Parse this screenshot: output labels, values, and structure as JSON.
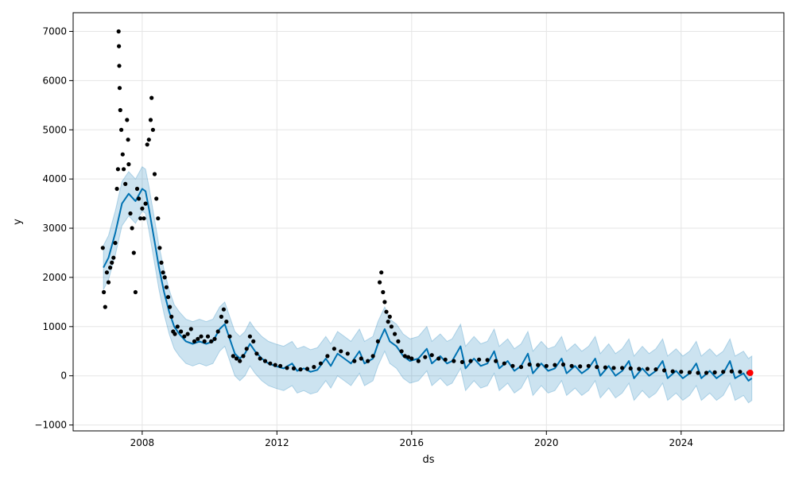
{
  "chart_data": {
    "type": "scatter",
    "title": "",
    "xlabel": "ds",
    "ylabel": "y",
    "x_tick_labels": [
      "2008",
      "2012",
      "2016",
      "2020",
      "2024"
    ],
    "y_tick_labels": [
      "7000",
      "6000",
      "5000",
      "4000",
      "3000",
      "2000",
      "1000",
      "0",
      "−1000"
    ],
    "xlim": [
      2005.95,
      2027.05
    ],
    "ylim": [
      -1120,
      7380
    ],
    "grid": true,
    "colors": {
      "observed": "#000000",
      "forecast_line": "#0072B2",
      "uncertainty_band": "#0072B2",
      "latest_point": "#FF0000",
      "grid": "#e5e5e5",
      "axes": "#000000"
    },
    "observed_points": [
      [
        2006.83,
        2600
      ],
      [
        2006.86,
        1700
      ],
      [
        2006.9,
        1400
      ],
      [
        2006.95,
        2100
      ],
      [
        2007.0,
        1900
      ],
      [
        2007.05,
        2200
      ],
      [
        2007.1,
        2300
      ],
      [
        2007.15,
        2400
      ],
      [
        2007.2,
        2700
      ],
      [
        2007.25,
        3800
      ],
      [
        2007.28,
        4200
      ],
      [
        2007.3,
        7000
      ],
      [
        2007.31,
        6700
      ],
      [
        2007.32,
        6300
      ],
      [
        2007.33,
        5850
      ],
      [
        2007.35,
        5400
      ],
      [
        2007.38,
        5000
      ],
      [
        2007.42,
        4500
      ],
      [
        2007.45,
        4200
      ],
      [
        2007.5,
        3900
      ],
      [
        2007.55,
        5200
      ],
      [
        2007.58,
        4800
      ],
      [
        2007.6,
        4300
      ],
      [
        2007.65,
        3300
      ],
      [
        2007.7,
        3000
      ],
      [
        2007.75,
        2500
      ],
      [
        2007.8,
        1700
      ],
      [
        2007.85,
        3800
      ],
      [
        2007.9,
        3600
      ],
      [
        2007.95,
        3200
      ],
      [
        2008.0,
        3400
      ],
      [
        2008.05,
        3200
      ],
      [
        2008.1,
        3500
      ],
      [
        2008.15,
        4700
      ],
      [
        2008.2,
        4800
      ],
      [
        2008.25,
        5200
      ],
      [
        2008.28,
        5650
      ],
      [
        2008.32,
        5000
      ],
      [
        2008.37,
        4100
      ],
      [
        2008.42,
        3600
      ],
      [
        2008.47,
        3200
      ],
      [
        2008.52,
        2600
      ],
      [
        2008.57,
        2300
      ],
      [
        2008.62,
        2100
      ],
      [
        2008.67,
        2000
      ],
      [
        2008.72,
        1800
      ],
      [
        2008.77,
        1600
      ],
      [
        2008.82,
        1400
      ],
      [
        2008.87,
        1200
      ],
      [
        2008.92,
        900
      ],
      [
        2008.97,
        850
      ],
      [
        2009.05,
        1000
      ],
      [
        2009.15,
        900
      ],
      [
        2009.25,
        800
      ],
      [
        2009.35,
        850
      ],
      [
        2009.45,
        950
      ],
      [
        2009.55,
        700
      ],
      [
        2009.65,
        750
      ],
      [
        2009.75,
        800
      ],
      [
        2009.85,
        700
      ],
      [
        2009.95,
        800
      ],
      [
        2010.05,
        700
      ],
      [
        2010.15,
        750
      ],
      [
        2010.25,
        900
      ],
      [
        2010.35,
        1200
      ],
      [
        2010.42,
        1350
      ],
      [
        2010.5,
        1100
      ],
      [
        2010.6,
        800
      ],
      [
        2010.7,
        400
      ],
      [
        2010.8,
        350
      ],
      [
        2010.9,
        300
      ],
      [
        2011.0,
        400
      ],
      [
        2011.1,
        550
      ],
      [
        2011.2,
        800
      ],
      [
        2011.3,
        700
      ],
      [
        2011.4,
        450
      ],
      [
        2011.5,
        350
      ],
      [
        2011.65,
        300
      ],
      [
        2011.8,
        250
      ],
      [
        2011.95,
        220
      ],
      [
        2012.1,
        200
      ],
      [
        2012.3,
        160
      ],
      [
        2012.5,
        150
      ],
      [
        2012.7,
        130
      ],
      [
        2012.9,
        140
      ],
      [
        2013.1,
        180
      ],
      [
        2013.3,
        250
      ],
      [
        2013.5,
        400
      ],
      [
        2013.7,
        550
      ],
      [
        2013.9,
        500
      ],
      [
        2014.1,
        450
      ],
      [
        2014.3,
        300
      ],
      [
        2014.5,
        350
      ],
      [
        2014.7,
        300
      ],
      [
        2014.85,
        400
      ],
      [
        2015.0,
        700
      ],
      [
        2015.05,
        1900
      ],
      [
        2015.1,
        2100
      ],
      [
        2015.15,
        1700
      ],
      [
        2015.2,
        1500
      ],
      [
        2015.25,
        1300
      ],
      [
        2015.3,
        1100
      ],
      [
        2015.35,
        1200
      ],
      [
        2015.4,
        1000
      ],
      [
        2015.5,
        850
      ],
      [
        2015.6,
        700
      ],
      [
        2015.7,
        500
      ],
      [
        2015.8,
        400
      ],
      [
        2015.9,
        380
      ],
      [
        2016.0,
        350
      ],
      [
        2016.2,
        300
      ],
      [
        2016.4,
        380
      ],
      [
        2016.6,
        420
      ],
      [
        2016.8,
        350
      ],
      [
        2017.0,
        330
      ],
      [
        2017.25,
        300
      ],
      [
        2017.5,
        280
      ],
      [
        2017.75,
        300
      ],
      [
        2018.0,
        330
      ],
      [
        2018.25,
        320
      ],
      [
        2018.5,
        300
      ],
      [
        2018.75,
        250
      ],
      [
        2019.0,
        200
      ],
      [
        2019.25,
        180
      ],
      [
        2019.5,
        230
      ],
      [
        2019.75,
        220
      ],
      [
        2020.0,
        200
      ],
      [
        2020.25,
        220
      ],
      [
        2020.5,
        230
      ],
      [
        2020.75,
        200
      ],
      [
        2021.0,
        190
      ],
      [
        2021.25,
        200
      ],
      [
        2021.5,
        180
      ],
      [
        2021.75,
        170
      ],
      [
        2022.0,
        160
      ],
      [
        2022.25,
        160
      ],
      [
        2022.5,
        150
      ],
      [
        2022.75,
        140
      ],
      [
        2023.0,
        140
      ],
      [
        2023.25,
        130
      ],
      [
        2023.5,
        110
      ],
      [
        2023.75,
        90
      ],
      [
        2024.0,
        80
      ],
      [
        2024.25,
        70
      ],
      [
        2024.5,
        60
      ],
      [
        2024.75,
        60
      ],
      [
        2025.0,
        70
      ],
      [
        2025.25,
        80
      ],
      [
        2025.5,
        90
      ],
      [
        2025.75,
        80
      ],
      [
        2026.0,
        60
      ]
    ],
    "latest_point": [
      2026.05,
      60
    ],
    "forecast": [
      [
        2006.85,
        2200
      ],
      [
        2007.0,
        2400
      ],
      [
        2007.2,
        2900
      ],
      [
        2007.4,
        3500
      ],
      [
        2007.6,
        3700
      ],
      [
        2007.8,
        3550
      ],
      [
        2008.0,
        3800
      ],
      [
        2008.1,
        3750
      ],
      [
        2008.2,
        3400
      ],
      [
        2008.35,
        2800
      ],
      [
        2008.5,
        2200
      ],
      [
        2008.65,
        1700
      ],
      [
        2008.8,
        1300
      ],
      [
        2008.95,
        1000
      ],
      [
        2009.1,
        850
      ],
      [
        2009.3,
        700
      ],
      [
        2009.5,
        650
      ],
      [
        2009.7,
        700
      ],
      [
        2009.9,
        650
      ],
      [
        2010.1,
        700
      ],
      [
        2010.3,
        950
      ],
      [
        2010.45,
        1050
      ],
      [
        2010.6,
        750
      ],
      [
        2010.75,
        450
      ],
      [
        2010.9,
        350
      ],
      [
        2011.05,
        450
      ],
      [
        2011.2,
        650
      ],
      [
        2011.35,
        500
      ],
      [
        2011.55,
        350
      ],
      [
        2011.75,
        250
      ],
      [
        2011.95,
        200
      ],
      [
        2012.2,
        150
      ],
      [
        2012.45,
        250
      ],
      [
        2012.6,
        100
      ],
      [
        2012.8,
        150
      ],
      [
        2013.0,
        80
      ],
      [
        2013.2,
        120
      ],
      [
        2013.45,
        350
      ],
      [
        2013.6,
        200
      ],
      [
        2013.8,
        450
      ],
      [
        2014.0,
        350
      ],
      [
        2014.2,
        250
      ],
      [
        2014.45,
        500
      ],
      [
        2014.6,
        250
      ],
      [
        2014.85,
        350
      ],
      [
        2015.0,
        650
      ],
      [
        2015.2,
        950
      ],
      [
        2015.35,
        700
      ],
      [
        2015.55,
        600
      ],
      [
        2015.75,
        400
      ],
      [
        2015.95,
        300
      ],
      [
        2016.2,
        350
      ],
      [
        2016.45,
        550
      ],
      [
        2016.6,
        250
      ],
      [
        2016.85,
        400
      ],
      [
        2017.05,
        250
      ],
      [
        2017.2,
        300
      ],
      [
        2017.45,
        600
      ],
      [
        2017.6,
        150
      ],
      [
        2017.85,
        350
      ],
      [
        2018.05,
        200
      ],
      [
        2018.25,
        250
      ],
      [
        2018.45,
        500
      ],
      [
        2018.6,
        150
      ],
      [
        2018.85,
        300
      ],
      [
        2019.05,
        100
      ],
      [
        2019.25,
        200
      ],
      [
        2019.45,
        450
      ],
      [
        2019.6,
        50
      ],
      [
        2019.85,
        250
      ],
      [
        2020.05,
        100
      ],
      [
        2020.25,
        150
      ],
      [
        2020.45,
        350
      ],
      [
        2020.6,
        50
      ],
      [
        2020.85,
        200
      ],
      [
        2021.05,
        50
      ],
      [
        2021.25,
        150
      ],
      [
        2021.45,
        350
      ],
      [
        2021.6,
        0
      ],
      [
        2021.85,
        200
      ],
      [
        2022.05,
        0
      ],
      [
        2022.25,
        100
      ],
      [
        2022.45,
        300
      ],
      [
        2022.6,
        -50
      ],
      [
        2022.85,
        150
      ],
      [
        2023.05,
        0
      ],
      [
        2023.25,
        100
      ],
      [
        2023.45,
        300
      ],
      [
        2023.6,
        -50
      ],
      [
        2023.85,
        100
      ],
      [
        2024.05,
        -50
      ],
      [
        2024.25,
        50
      ],
      [
        2024.45,
        250
      ],
      [
        2024.6,
        -50
      ],
      [
        2024.85,
        100
      ],
      [
        2025.05,
        -50
      ],
      [
        2025.25,
        50
      ],
      [
        2025.45,
        300
      ],
      [
        2025.6,
        -50
      ],
      [
        2025.85,
        50
      ],
      [
        2026.0,
        -100
      ],
      [
        2026.1,
        -50
      ]
    ],
    "band_half_width": 450
  }
}
